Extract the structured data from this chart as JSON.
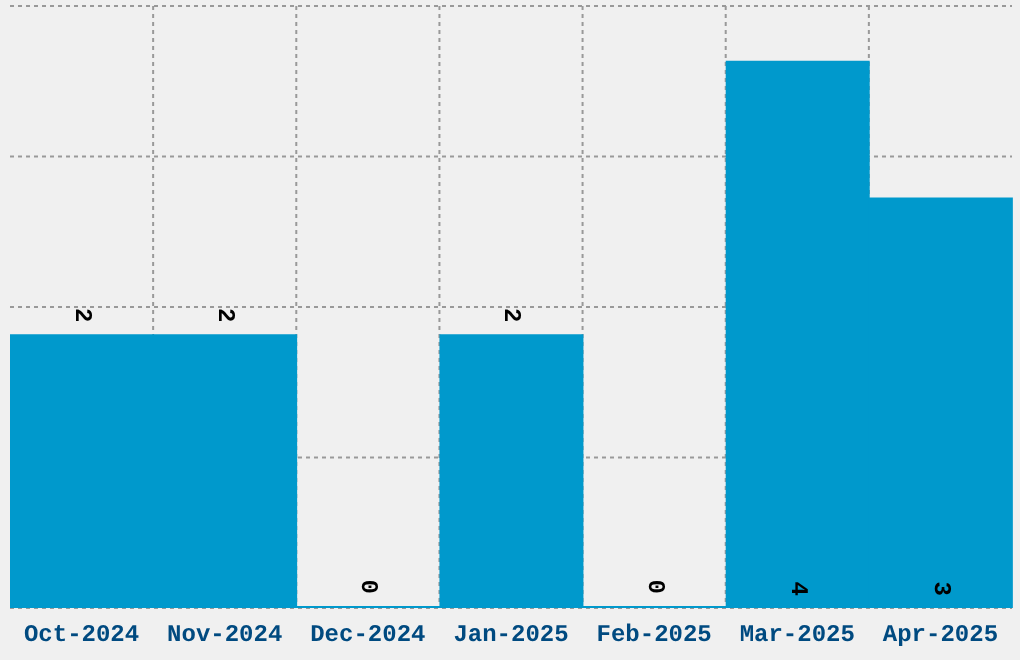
{
  "chart_data": {
    "type": "bar",
    "categories": [
      "Oct-2024",
      "Nov-2024",
      "Dec-2024",
      "Jan-2025",
      "Feb-2025",
      "Mar-2025",
      "Apr-2025"
    ],
    "values": [
      2,
      2,
      0,
      2,
      0,
      4,
      3
    ],
    "color": "#0099cc",
    "ylim": [
      0,
      4.4
    ],
    "yticks": [
      {
        "value": 1.1,
        "label": null
      },
      {
        "value": 2.2,
        "label": null
      },
      {
        "value": 3.3,
        "label": null
      },
      {
        "value": 4.4,
        "label": null
      }
    ],
    "tick_labels": "x",
    "grid": true,
    "data_labels": true
  }
}
